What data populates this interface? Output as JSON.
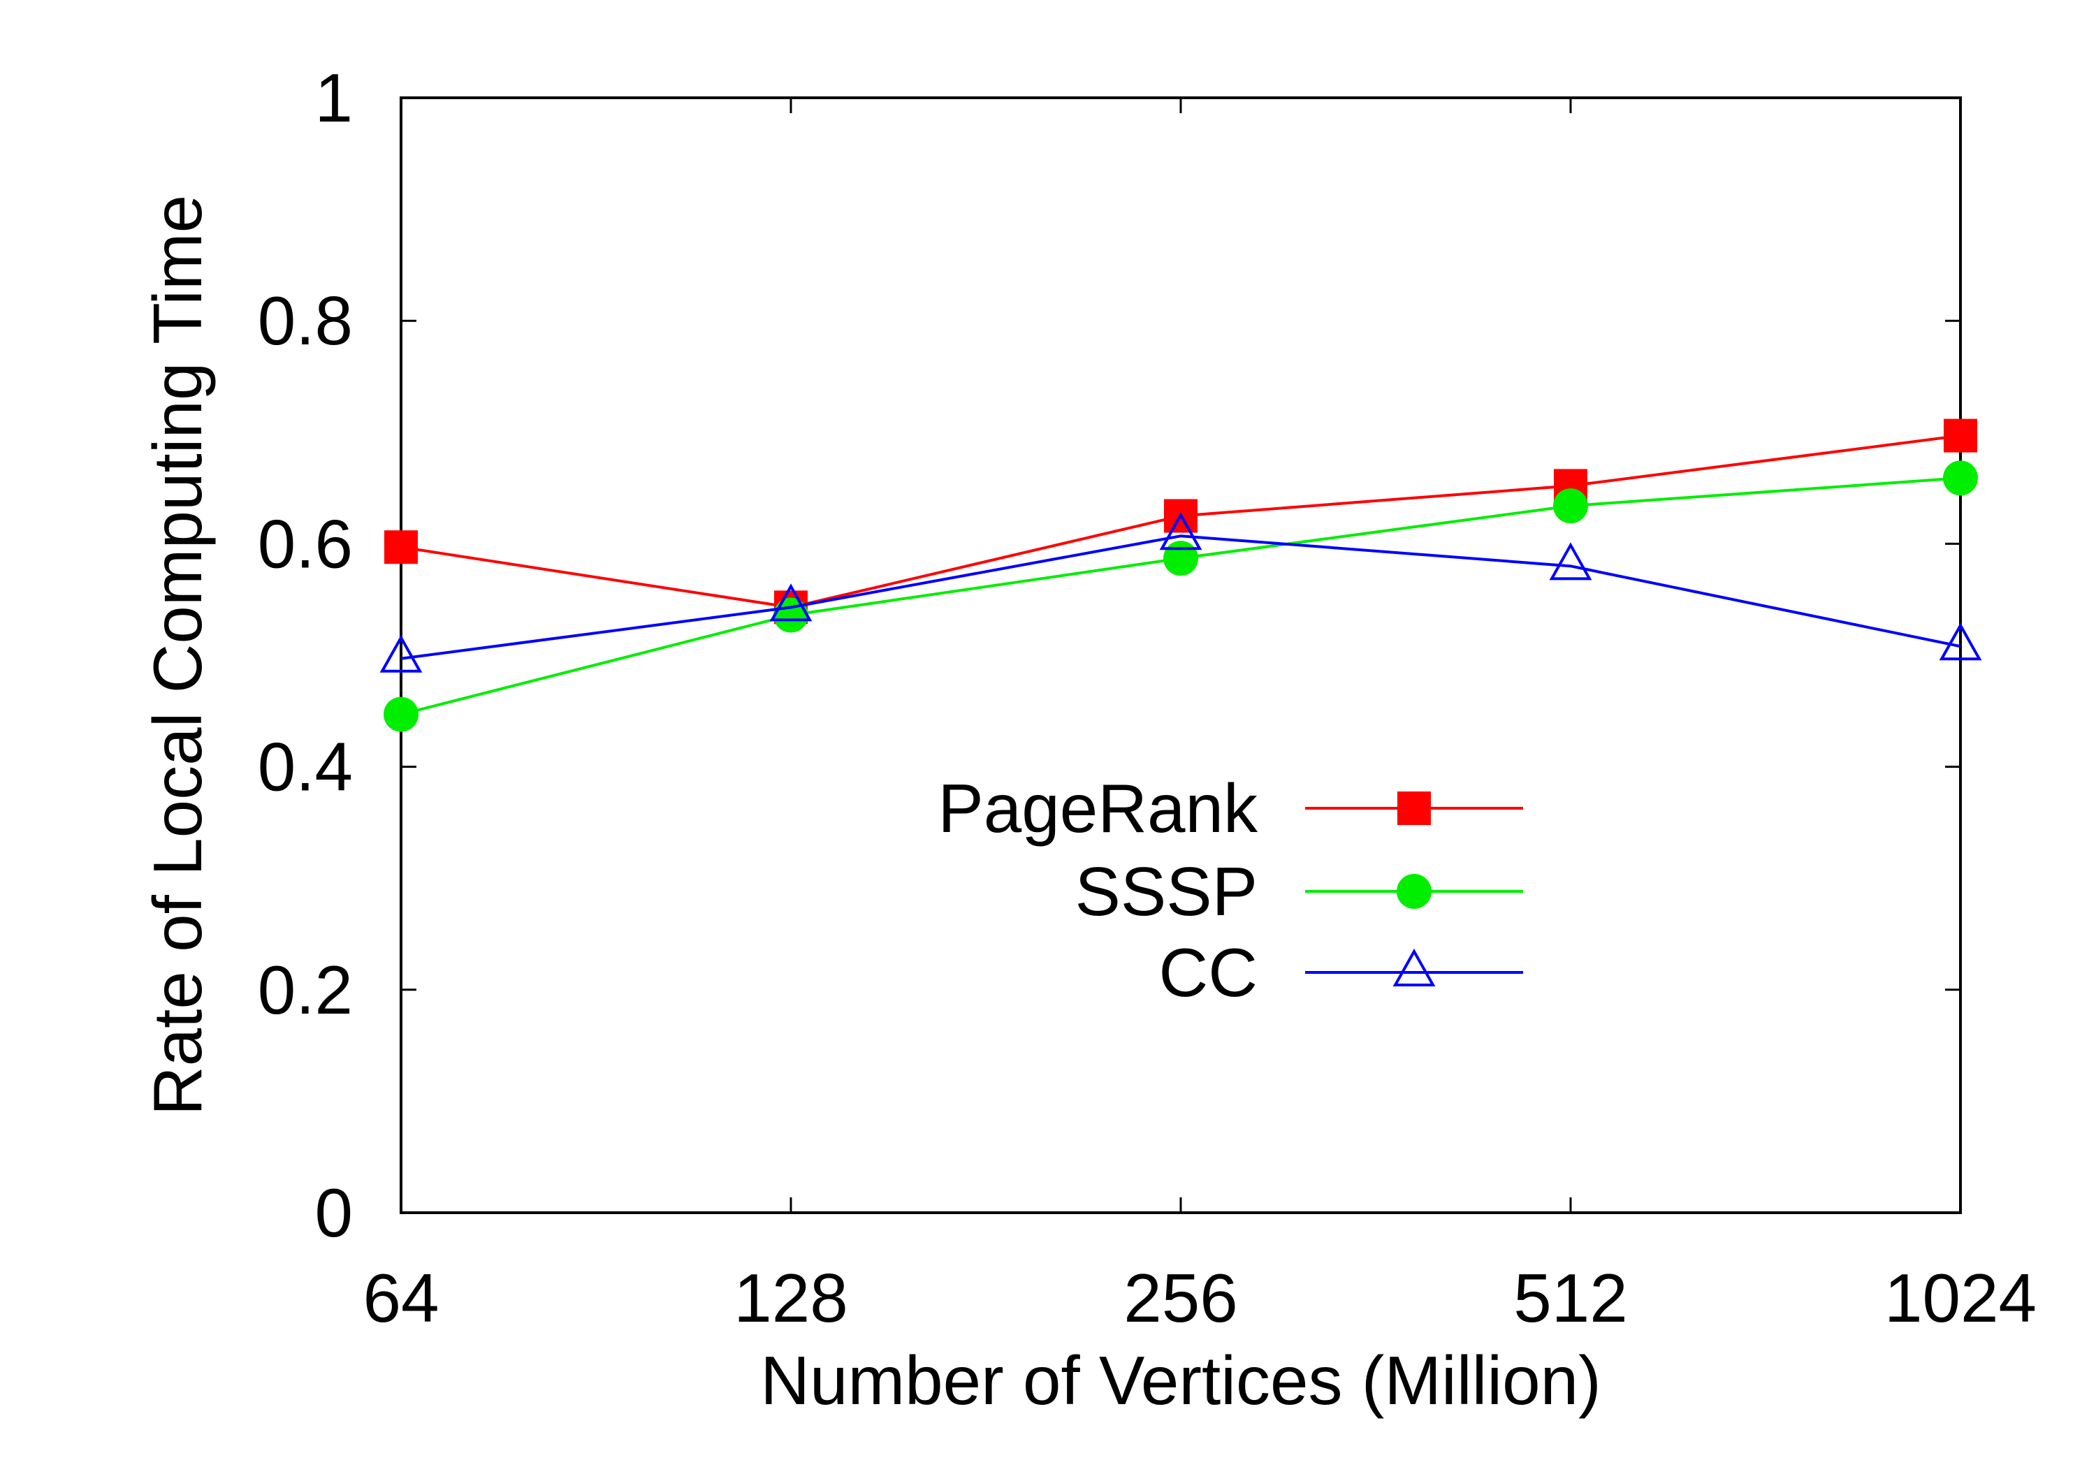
{
  "chart_data": {
    "type": "line",
    "xlabel": "Number of Vertices (Million)",
    "ylabel": "Rate of Local Computing Time",
    "categories": [
      "64",
      "128",
      "256",
      "512",
      "1024"
    ],
    "ylim": [
      0,
      1
    ],
    "yticks": [
      "0",
      "0.2",
      "0.4",
      "0.6",
      "0.8",
      "1"
    ],
    "legend_position": "center",
    "grid": false,
    "series": [
      {
        "name": "PageRank",
        "color": "#ff0000",
        "marker": "filled-square",
        "values": [
          0.597,
          0.543,
          0.625,
          0.652,
          0.697
        ]
      },
      {
        "name": "SSSP",
        "color": "#00ee00",
        "marker": "filled-circle",
        "values": [
          0.447,
          0.536,
          0.587,
          0.634,
          0.659
        ]
      },
      {
        "name": "CC",
        "color": "#0000ff",
        "marker": "open-triangle",
        "values": [
          0.497,
          0.543,
          0.607,
          0.58,
          0.508
        ]
      }
    ]
  }
}
